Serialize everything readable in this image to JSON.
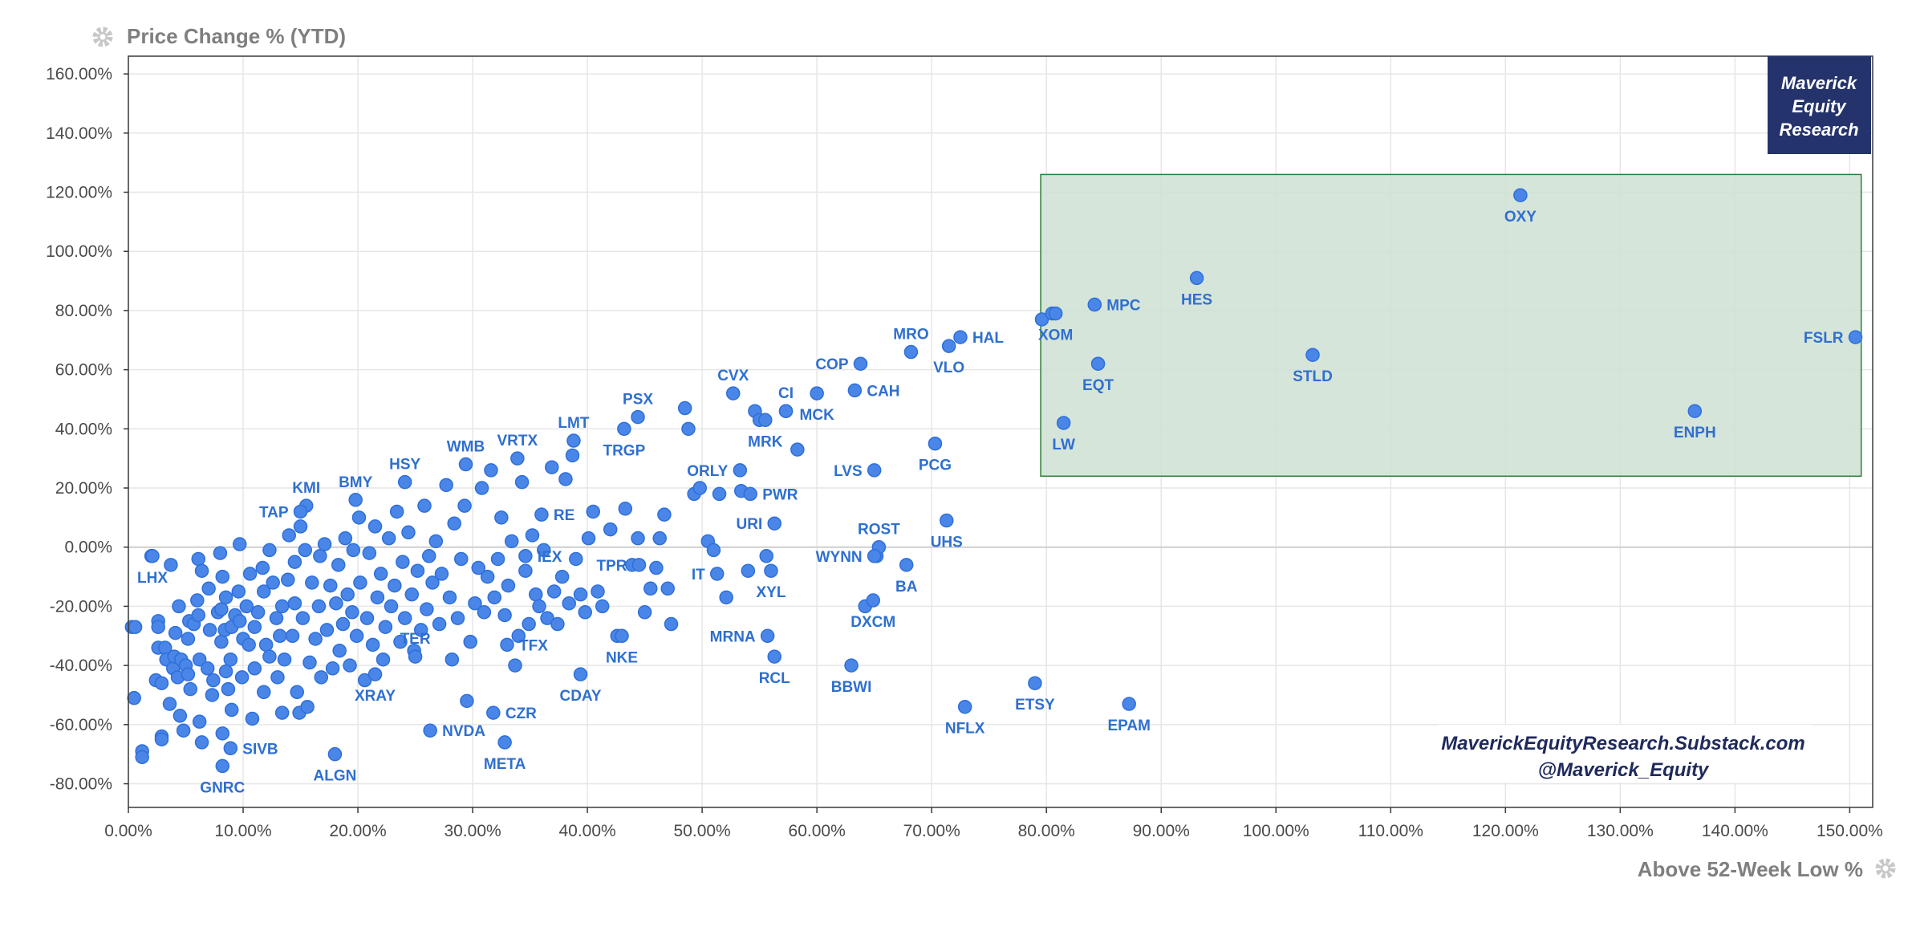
{
  "header": {
    "y_axis_title": "Price Change % (YTD)"
  },
  "footer": {
    "x_axis_title": "Above 52-Week Low %"
  },
  "branding": {
    "logo_lines": [
      "Maverick",
      "Equity",
      "Research"
    ],
    "site": "MaverickEquityResearch.Substack.com",
    "handle": "@Maverick_Equity"
  },
  "icons": {
    "y_settings": "gear-icon",
    "x_settings": "gear-icon"
  },
  "colors": {
    "point_fill": "#4a86e8",
    "point_stroke": "#2e6fd9",
    "label": "#2f6fcf",
    "highlight_fill": "#cfe0d3",
    "highlight_stroke": "#2e7d3a",
    "logo_bg": "#24336b",
    "branding_text": "#1f2a5c",
    "axis_title": "#7f7f7f",
    "gear": "#c8c8c8"
  },
  "chart_data": {
    "type": "scatter",
    "title": "",
    "xlabel": "Above 52-Week Low %",
    "ylabel": "Price Change % (YTD)",
    "xlim": [
      0,
      152
    ],
    "ylim": [
      -88,
      166
    ],
    "x_ticks": [
      "0.00%",
      "10.00%",
      "20.00%",
      "30.00%",
      "40.00%",
      "50.00%",
      "60.00%",
      "70.00%",
      "80.00%",
      "90.00%",
      "100.00%",
      "110.00%",
      "120.00%",
      "130.00%",
      "140.00%",
      "150.00%"
    ],
    "x_tick_values": [
      0,
      10,
      20,
      30,
      40,
      50,
      60,
      70,
      80,
      90,
      100,
      110,
      120,
      130,
      140,
      150
    ],
    "y_ticks": [
      "-80.00%",
      "-60.00%",
      "-40.00%",
      "-20.00%",
      "0.00%",
      "20.00%",
      "40.00%",
      "60.00%",
      "80.00%",
      "100.00%",
      "120.00%",
      "140.00%",
      "160.00%"
    ],
    "y_tick_values": [
      -80,
      -60,
      -40,
      -20,
      0,
      20,
      40,
      60,
      80,
      100,
      120,
      140,
      160
    ],
    "grid": true,
    "highlight_region": {
      "x": [
        79.5,
        151
      ],
      "y": [
        24,
        126
      ]
    },
    "labeled_points": [
      {
        "label": "OXY",
        "x": 121.3,
        "y": 119,
        "pos": "below"
      },
      {
        "label": "FSLR",
        "x": 150.5,
        "y": 71,
        "pos": "left"
      },
      {
        "label": "HES",
        "x": 93.1,
        "y": 91,
        "pos": "below"
      },
      {
        "label": "MPC",
        "x": 84.2,
        "y": 82,
        "pos": "right"
      },
      {
        "label": "XOM",
        "x": 80.8,
        "y": 79,
        "pos": "below"
      },
      {
        "label": "EQT",
        "x": 84.5,
        "y": 62,
        "pos": "below"
      },
      {
        "label": "STLD",
        "x": 103.2,
        "y": 65,
        "pos": "below"
      },
      {
        "label": "LW",
        "x": 81.5,
        "y": 42,
        "pos": "below"
      },
      {
        "label": "ENPH",
        "x": 136.5,
        "y": 46,
        "pos": "below"
      },
      {
        "label": "HAL",
        "x": 72.5,
        "y": 71,
        "pos": "right"
      },
      {
        "label": "MRO",
        "x": 68.2,
        "y": 66,
        "pos": "above"
      },
      {
        "label": "VLO",
        "x": 71.5,
        "y": 68,
        "pos": "below"
      },
      {
        "label": "COP",
        "x": 63.8,
        "y": 62,
        "pos": "left"
      },
      {
        "label": "CAH",
        "x": 63.3,
        "y": 53,
        "pos": "right"
      },
      {
        "label": "CVX",
        "x": 52.7,
        "y": 52,
        "pos": "above"
      },
      {
        "label": "CI",
        "x": 57.3,
        "y": 46,
        "pos": "above"
      },
      {
        "label": "MCK",
        "x": 60.0,
        "y": 52,
        "pos": "below"
      },
      {
        "label": "MRK",
        "x": 55.5,
        "y": 43,
        "pos": "below"
      },
      {
        "label": "PSX",
        "x": 44.4,
        "y": 44,
        "pos": "above"
      },
      {
        "label": "TRGP",
        "x": 43.2,
        "y": 40,
        "pos": "below"
      },
      {
        "label": "LMT",
        "x": 38.8,
        "y": 36,
        "pos": "above"
      },
      {
        "label": "VRTX",
        "x": 33.9,
        "y": 30,
        "pos": "above"
      },
      {
        "label": "WMB",
        "x": 29.4,
        "y": 28,
        "pos": "above"
      },
      {
        "label": "HSY",
        "x": 24.1,
        "y": 22,
        "pos": "above"
      },
      {
        "label": "BMY",
        "x": 19.8,
        "y": 16,
        "pos": "above"
      },
      {
        "label": "KMI",
        "x": 15.5,
        "y": 14,
        "pos": "above"
      },
      {
        "label": "TAP",
        "x": 15.0,
        "y": 12,
        "pos": "left"
      },
      {
        "label": "ORLY",
        "x": 53.3,
        "y": 26,
        "pos": "left"
      },
      {
        "label": "PWR",
        "x": 54.2,
        "y": 18,
        "pos": "right"
      },
      {
        "label": "LVS",
        "x": 65.0,
        "y": 26,
        "pos": "left"
      },
      {
        "label": "PCG",
        "x": 70.3,
        "y": 35,
        "pos": "below"
      },
      {
        "label": "RE",
        "x": 36.0,
        "y": 11,
        "pos": "right"
      },
      {
        "label": "URI",
        "x": 56.3,
        "y": 8,
        "pos": "left"
      },
      {
        "label": "ROST",
        "x": 65.4,
        "y": 0,
        "pos": "above"
      },
      {
        "label": "UHS",
        "x": 71.3,
        "y": 9,
        "pos": "below"
      },
      {
        "label": "WYNN",
        "x": 65.0,
        "y": -3,
        "pos": "left"
      },
      {
        "label": "IEX",
        "x": 34.6,
        "y": -3,
        "pos": "right"
      },
      {
        "label": "TPR",
        "x": 44.5,
        "y": -6,
        "pos": "left"
      },
      {
        "label": "IT",
        "x": 51.3,
        "y": -9,
        "pos": "left"
      },
      {
        "label": "BA",
        "x": 67.8,
        "y": -6,
        "pos": "below"
      },
      {
        "label": "XYL",
        "x": 56.0,
        "y": -8,
        "pos": "below"
      },
      {
        "label": "DXCM",
        "x": 64.9,
        "y": -18,
        "pos": "below"
      },
      {
        "label": "LHX",
        "x": 2.1,
        "y": -3,
        "pos": "below"
      },
      {
        "label": "TFX",
        "x": 33.0,
        "y": -33,
        "pos": "right"
      },
      {
        "label": "NKE",
        "x": 43.0,
        "y": -30,
        "pos": "below"
      },
      {
        "label": "MRNA",
        "x": 55.7,
        "y": -30,
        "pos": "left"
      },
      {
        "label": "RCL",
        "x": 56.3,
        "y": -37,
        "pos": "below"
      },
      {
        "label": "TER",
        "x": 25.0,
        "y": -37,
        "pos": "above"
      },
      {
        "label": "CDAY",
        "x": 39.4,
        "y": -43,
        "pos": "below"
      },
      {
        "label": "BBWI",
        "x": 63.0,
        "y": -40,
        "pos": "below"
      },
      {
        "label": "ETSY",
        "x": 79.0,
        "y": -46,
        "pos": "below"
      },
      {
        "label": "XRAY",
        "x": 21.5,
        "y": -43,
        "pos": "below"
      },
      {
        "label": "NFLX",
        "x": 72.9,
        "y": -54,
        "pos": "below"
      },
      {
        "label": "EPAM",
        "x": 87.2,
        "y": -53,
        "pos": "below"
      },
      {
        "label": "NVDA",
        "x": 26.3,
        "y": -62,
        "pos": "right"
      },
      {
        "label": "CZR",
        "x": 31.8,
        "y": -56,
        "pos": "right"
      },
      {
        "label": "META",
        "x": 32.8,
        "y": -66,
        "pos": "below"
      },
      {
        "label": "SIVB",
        "x": 8.9,
        "y": -68,
        "pos": "right"
      },
      {
        "label": "ALGN",
        "x": 18.0,
        "y": -70,
        "pos": "below"
      },
      {
        "label": "GNRC",
        "x": 8.2,
        "y": -74,
        "pos": "below"
      }
    ],
    "other_points": [
      [
        0.3,
        -27
      ],
      [
        0.6,
        -27
      ],
      [
        0.5,
        -51
      ],
      [
        1.2,
        -69
      ],
      [
        1.2,
        -71
      ],
      [
        2.0,
        -3
      ],
      [
        2.4,
        -45
      ],
      [
        2.9,
        -46
      ],
      [
        2.6,
        -25
      ],
      [
        2.6,
        -27
      ],
      [
        2.6,
        -34
      ],
      [
        2.9,
        -64
      ],
      [
        2.9,
        -65
      ],
      [
        3.2,
        -34
      ],
      [
        3.3,
        -38
      ],
      [
        3.6,
        -53
      ],
      [
        3.7,
        -6
      ],
      [
        3.9,
        -41
      ],
      [
        4.0,
        -37
      ],
      [
        4.1,
        -29
      ],
      [
        4.3,
        -44
      ],
      [
        4.4,
        -20
      ],
      [
        4.5,
        -57
      ],
      [
        4.6,
        -38
      ],
      [
        4.8,
        -62
      ],
      [
        5.0,
        -40
      ],
      [
        5.2,
        -31
      ],
      [
        5.2,
        -43
      ],
      [
        5.4,
        -48
      ],
      [
        5.3,
        -25
      ],
      [
        5.7,
        -26
      ],
      [
        6.0,
        -18
      ],
      [
        6.1,
        -4
      ],
      [
        6.1,
        -23
      ],
      [
        6.2,
        -38
      ],
      [
        6.2,
        -59
      ],
      [
        6.4,
        -8
      ],
      [
        6.4,
        -66
      ],
      [
        6.9,
        -41
      ],
      [
        7.0,
        -14
      ],
      [
        7.1,
        -28
      ],
      [
        7.3,
        -50
      ],
      [
        7.4,
        -45
      ],
      [
        7.8,
        -22
      ],
      [
        8.0,
        -2
      ],
      [
        8.1,
        -32
      ],
      [
        8.1,
        -21
      ],
      [
        8.2,
        -10
      ],
      [
        8.2,
        -63
      ],
      [
        8.4,
        -28
      ],
      [
        8.5,
        -17
      ],
      [
        8.5,
        -42
      ],
      [
        8.7,
        -48
      ],
      [
        8.9,
        -38
      ],
      [
        9.0,
        -55
      ],
      [
        9.0,
        -27
      ],
      [
        9.3,
        -23
      ],
      [
        9.6,
        -15
      ],
      [
        9.7,
        -25
      ],
      [
        9.7,
        1
      ],
      [
        9.9,
        -44
      ],
      [
        10.0,
        -31
      ],
      [
        10.3,
        -20
      ],
      [
        10.5,
        -33
      ],
      [
        10.6,
        -9
      ],
      [
        10.8,
        -58
      ],
      [
        11.0,
        -27
      ],
      [
        11.0,
        -41
      ],
      [
        11.3,
        -22
      ],
      [
        11.7,
        -7
      ],
      [
        11.8,
        -49
      ],
      [
        11.8,
        -15
      ],
      [
        12.0,
        -33
      ],
      [
        12.3,
        -37
      ],
      [
        12.3,
        -1
      ],
      [
        12.6,
        -12
      ],
      [
        12.9,
        -24
      ],
      [
        13.0,
        -44
      ],
      [
        13.2,
        -30
      ],
      [
        13.4,
        -56
      ],
      [
        13.4,
        -20
      ],
      [
        13.6,
        -38
      ],
      [
        13.9,
        -11
      ],
      [
        14.0,
        4
      ],
      [
        14.3,
        -30
      ],
      [
        14.5,
        -19
      ],
      [
        14.5,
        -5
      ],
      [
        14.7,
        -49
      ],
      [
        14.9,
        -56
      ],
      [
        15.0,
        7
      ],
      [
        15.2,
        -24
      ],
      [
        15.4,
        -1
      ],
      [
        15.6,
        -54
      ],
      [
        15.8,
        -39
      ],
      [
        16.0,
        -12
      ],
      [
        16.3,
        -31
      ],
      [
        16.6,
        -20
      ],
      [
        16.7,
        -3
      ],
      [
        16.8,
        -44
      ],
      [
        17.1,
        1
      ],
      [
        17.3,
        -28
      ],
      [
        17.6,
        -13
      ],
      [
        17.8,
        -41
      ],
      [
        18.1,
        -19
      ],
      [
        18.3,
        -6
      ],
      [
        18.4,
        -35
      ],
      [
        18.7,
        -26
      ],
      [
        18.9,
        3
      ],
      [
        19.1,
        -16
      ],
      [
        19.3,
        -40
      ],
      [
        19.5,
        -22
      ],
      [
        19.6,
        -1
      ],
      [
        19.9,
        -30
      ],
      [
        20.1,
        10
      ],
      [
        20.2,
        -12
      ],
      [
        20.6,
        -45
      ],
      [
        20.8,
        -24
      ],
      [
        21.0,
        -2
      ],
      [
        21.3,
        -33
      ],
      [
        21.5,
        7
      ],
      [
        21.7,
        -17
      ],
      [
        22.0,
        -9
      ],
      [
        22.2,
        -38
      ],
      [
        22.4,
        -27
      ],
      [
        22.7,
        3
      ],
      [
        22.9,
        -20
      ],
      [
        23.2,
        -13
      ],
      [
        23.4,
        12
      ],
      [
        23.7,
        -32
      ],
      [
        23.9,
        -5
      ],
      [
        24.1,
        -24
      ],
      [
        24.4,
        5
      ],
      [
        24.7,
        -16
      ],
      [
        24.9,
        -35
      ],
      [
        25.2,
        -8
      ],
      [
        25.5,
        -28
      ],
      [
        25.8,
        14
      ],
      [
        26.0,
        -21
      ],
      [
        26.2,
        -3
      ],
      [
        26.5,
        -12
      ],
      [
        26.8,
        2
      ],
      [
        27.1,
        -26
      ],
      [
        27.3,
        -9
      ],
      [
        27.7,
        21
      ],
      [
        28.0,
        -17
      ],
      [
        28.2,
        -38
      ],
      [
        28.4,
        8
      ],
      [
        28.7,
        -24
      ],
      [
        29.0,
        -4
      ],
      [
        29.3,
        14
      ],
      [
        29.5,
        -52
      ],
      [
        29.8,
        -32
      ],
      [
        30.2,
        -19
      ],
      [
        30.5,
        -7
      ],
      [
        30.8,
        20
      ],
      [
        31.0,
        -22
      ],
      [
        31.3,
        -10
      ],
      [
        31.6,
        26
      ],
      [
        31.9,
        -17
      ],
      [
        32.2,
        -4
      ],
      [
        32.5,
        10
      ],
      [
        32.8,
        -23
      ],
      [
        33.1,
        -13
      ],
      [
        33.4,
        2
      ],
      [
        33.7,
        -40
      ],
      [
        34.0,
        -30
      ],
      [
        34.3,
        22
      ],
      [
        34.6,
        -8
      ],
      [
        34.9,
        -26
      ],
      [
        35.2,
        4
      ],
      [
        35.5,
        -16
      ],
      [
        35.8,
        -20
      ],
      [
        36.2,
        -1
      ],
      [
        36.5,
        -24
      ],
      [
        36.9,
        27
      ],
      [
        37.1,
        -15
      ],
      [
        37.4,
        -26
      ],
      [
        37.8,
        -10
      ],
      [
        38.1,
        23
      ],
      [
        38.4,
        -19
      ],
      [
        38.7,
        31
      ],
      [
        39.0,
        -4
      ],
      [
        39.4,
        -16
      ],
      [
        39.8,
        -22
      ],
      [
        40.1,
        3
      ],
      [
        40.5,
        12
      ],
      [
        40.9,
        -15
      ],
      [
        41.3,
        -20
      ],
      [
        42.0,
        6
      ],
      [
        42.6,
        -30
      ],
      [
        43.3,
        13
      ],
      [
        43.9,
        -6
      ],
      [
        44.4,
        3
      ],
      [
        45.0,
        -22
      ],
      [
        45.5,
        -14
      ],
      [
        46.0,
        -7
      ],
      [
        46.3,
        3
      ],
      [
        46.7,
        11
      ],
      [
        47.0,
        -14
      ],
      [
        47.3,
        -26
      ],
      [
        48.5,
        47
      ],
      [
        48.8,
        40
      ],
      [
        49.3,
        18
      ],
      [
        49.8,
        20
      ],
      [
        50.5,
        2
      ],
      [
        51.0,
        -1
      ],
      [
        51.5,
        18
      ],
      [
        52.1,
        -17
      ],
      [
        53.4,
        19
      ],
      [
        54.0,
        -8
      ],
      [
        54.6,
        46
      ],
      [
        55.0,
        43
      ],
      [
        55.6,
        -3
      ],
      [
        57.3,
        46
      ],
      [
        58.3,
        33
      ],
      [
        64.2,
        -20
      ],
      [
        65.2,
        -3
      ],
      [
        79.6,
        77
      ],
      [
        80.5,
        79
      ]
    ]
  }
}
